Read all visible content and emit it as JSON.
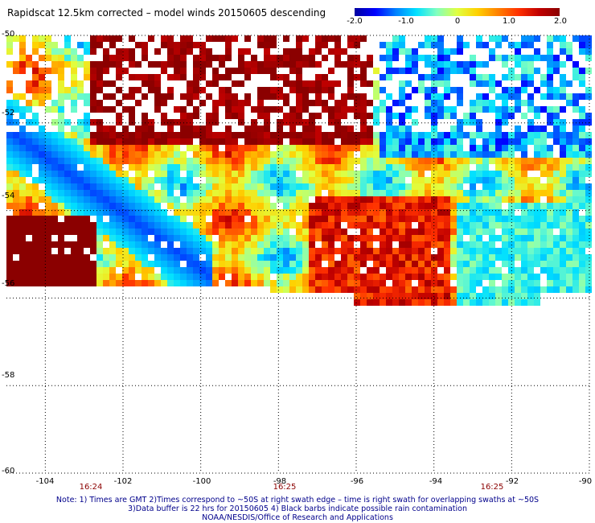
{
  "title": "Rapidscat 12.5km corrected – model winds 20150605 descending",
  "colorbar": {
    "ticks": [
      {
        "value": -2.0,
        "label": "-2.0"
      },
      {
        "value": -1.0,
        "label": "-1.0"
      },
      {
        "value": 0,
        "label": "0"
      },
      {
        "value": 1.0,
        "label": "1.0"
      },
      {
        "value": 2.0,
        "label": "2.0"
      }
    ],
    "range": [
      -2.0,
      2.0
    ],
    "colors": [
      "#0000a0",
      "#0000ff",
      "#0080ff",
      "#00e0ff",
      "#80ffc0",
      "#e0ff40",
      "#ffd000",
      "#ff8000",
      "#ff3000",
      "#c00000",
      "#8b0000"
    ]
  },
  "map": {
    "lat_range": [
      -60,
      -50
    ],
    "lon_range": [
      -105,
      -90
    ],
    "lat_ticks": [
      {
        "value": -50,
        "label": "-50"
      },
      {
        "value": -52,
        "label": "-52"
      },
      {
        "value": -54,
        "label": "-54"
      },
      {
        "value": -56,
        "label": "-56"
      },
      {
        "value": -58,
        "label": "-58"
      },
      {
        "value": -60,
        "label": "-60"
      }
    ],
    "lon_ticks": [
      {
        "value": -104,
        "label": "-104"
      },
      {
        "value": -102,
        "label": "-102"
      },
      {
        "value": -100,
        "label": "-100"
      },
      {
        "value": -98,
        "label": "-98"
      },
      {
        "value": -96,
        "label": "-96"
      },
      {
        "value": -94,
        "label": "-94"
      },
      {
        "value": -92,
        "label": "-92"
      },
      {
        "value": -90,
        "label": "-90"
      }
    ],
    "grid": "dotted",
    "time_labels": [
      {
        "lon": -103,
        "label": "16:24"
      },
      {
        "lon": -98,
        "label": "16:25"
      },
      {
        "lon": -92.6,
        "label": "16:25"
      }
    ]
  },
  "notes": [
    "Note: 1) Times are GMT 2)Times correspond to ~50S at right swath edge – time is right swath for overlapping swaths at ~50S",
    "3)Data buffer is 22 hrs for 20150605 4) Black barbs indicate possible rain contamination",
    "NOAA/NESDIS/Office of Research and Applications"
  ]
}
